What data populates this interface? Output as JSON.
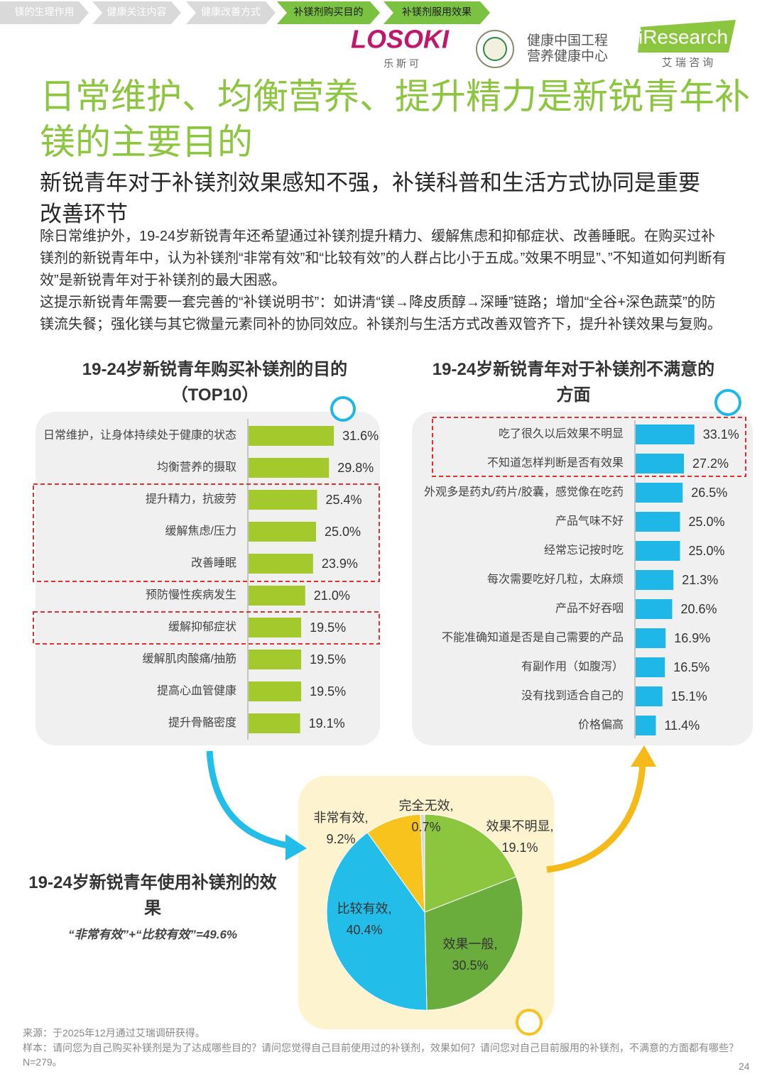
{
  "nav": {
    "tabs": [
      "镁的生理作用",
      "健康关注内容",
      "健康改善方式",
      "补镁剂购买目的",
      "补镁剂服用效果"
    ]
  },
  "logos": {
    "brand": "LOSOKI",
    "brand_cn": "乐 斯 可",
    "partner": [
      "健康中国工程",
      "营养健康中心"
    ],
    "research": "iResearch",
    "research_cn": "艾 瑞 咨 询"
  },
  "header": {
    "title": "日常维护、均衡营养、提升精力是新锐青年补镁的主要目的",
    "subtitle": "新锐青年对于补镁剂效果感知不强，补镁科普和生活方式协同是重要改善环节"
  },
  "body": {
    "paragraphs": [
      "除日常维护外，19-24岁新锐青年还希望通过补镁剂提升精力、缓解焦虑和抑郁症状、改善睡眠。在购买过补镁剂的新锐青年中，认为补镁剂“非常有效”和“比较有效”的人群占比小于五成。”效果不明显”、”不知道如何判断有效”是新锐青年对于补镁剂的最大困惑。",
      "这提示新锐青年需要一套完善的“补镁说明书”：如讲清“镁→降皮质醇→深睡”链路；增加“全谷+深色蔬菜”的防镁流失餐；强化镁与其它微量元素同补的协同效应。补镁剂与生活方式改善双管齐下，提升补镁效果与复购。"
    ]
  },
  "chart_data": [
    {
      "type": "bar",
      "title": "19-24岁新锐青年购买补镁剂的目的（TOP10）",
      "color": "#a3c92d",
      "categories": [
        "日常维护，让身体持续处于健康的状态",
        "均衡营养的摄取",
        "提升精力，抗疲劳",
        "缓解焦虑/压力",
        "改善睡眠",
        "预防慢性疾病发生",
        "缓解抑郁症状",
        "缓解肌肉酸痛/抽筋",
        "提高心血管健康",
        "提升骨骼密度"
      ],
      "values": [
        31.6,
        29.8,
        25.4,
        25,
        23.9,
        21,
        19.5,
        19.5,
        19.5,
        19.1
      ],
      "value_labels": [
        "31.6%",
        "29.8%",
        "25.4%",
        "25.0%",
        "23.9%",
        "21.0%",
        "19.5%",
        "19.5%",
        "19.5%",
        "19.1%"
      ]
    },
    {
      "type": "bar",
      "title": "19-24岁新锐青年对于补镁剂不满意的方面",
      "color": "#1eb7e8",
      "categories": [
        "吃了很久以后效果不明显",
        "不知道怎样判断是否有效果",
        "外观多是药丸/药片/胶囊，感觉像在吃药",
        "产品气味不好",
        "经常忘记按时吃",
        "每次需要吃好几粒，太麻烦",
        "产品不好吞咽",
        "不能准确知道是否是自己需要的产品",
        "有副作用（如腹泻）",
        "没有找到适合自己的",
        "价格偏高"
      ],
      "values": [
        33.1,
        27.2,
        26.5,
        25,
        25,
        21.3,
        20.6,
        16.9,
        16.5,
        15.1,
        11.4
      ],
      "value_labels": [
        "33.1%",
        "27.2%",
        "26.5%",
        "25.0%",
        "25.0%",
        "21.3%",
        "20.6%",
        "16.9%",
        "16.5%",
        "15.1%",
        "11.4%"
      ]
    },
    {
      "type": "pie",
      "title": "19-24岁新锐青年使用补镁剂的效果",
      "annotation": "“非常有效”+“比较有效”=49.6%",
      "categories": [
        "效果不明显,",
        "效果一般,",
        "比较有效,",
        "非常有效,",
        "完全无效,"
      ],
      "values": [
        19.1,
        30.5,
        40.4,
        9.2,
        0.7
      ],
      "value_labels": [
        "19.1%",
        "30.5%",
        "40.4%",
        "9.2%",
        "0.7%"
      ],
      "colors": [
        "#8cc63f",
        "#6aad3d",
        "#22bde9",
        "#f7c31c",
        "#d9d9d9"
      ]
    }
  ],
  "footer": {
    "source": "来源：于2025年12月通过艾瑞调研获得。",
    "sample": "样本：请问您为自己购买补镁剂是为了达成哪些目的？请问您觉得自己目前使用过的补镁剂，效果如何？请问您对自己目前服用的补镁剂，不满意的方面都有哪些？N=279。",
    "page": "24"
  }
}
